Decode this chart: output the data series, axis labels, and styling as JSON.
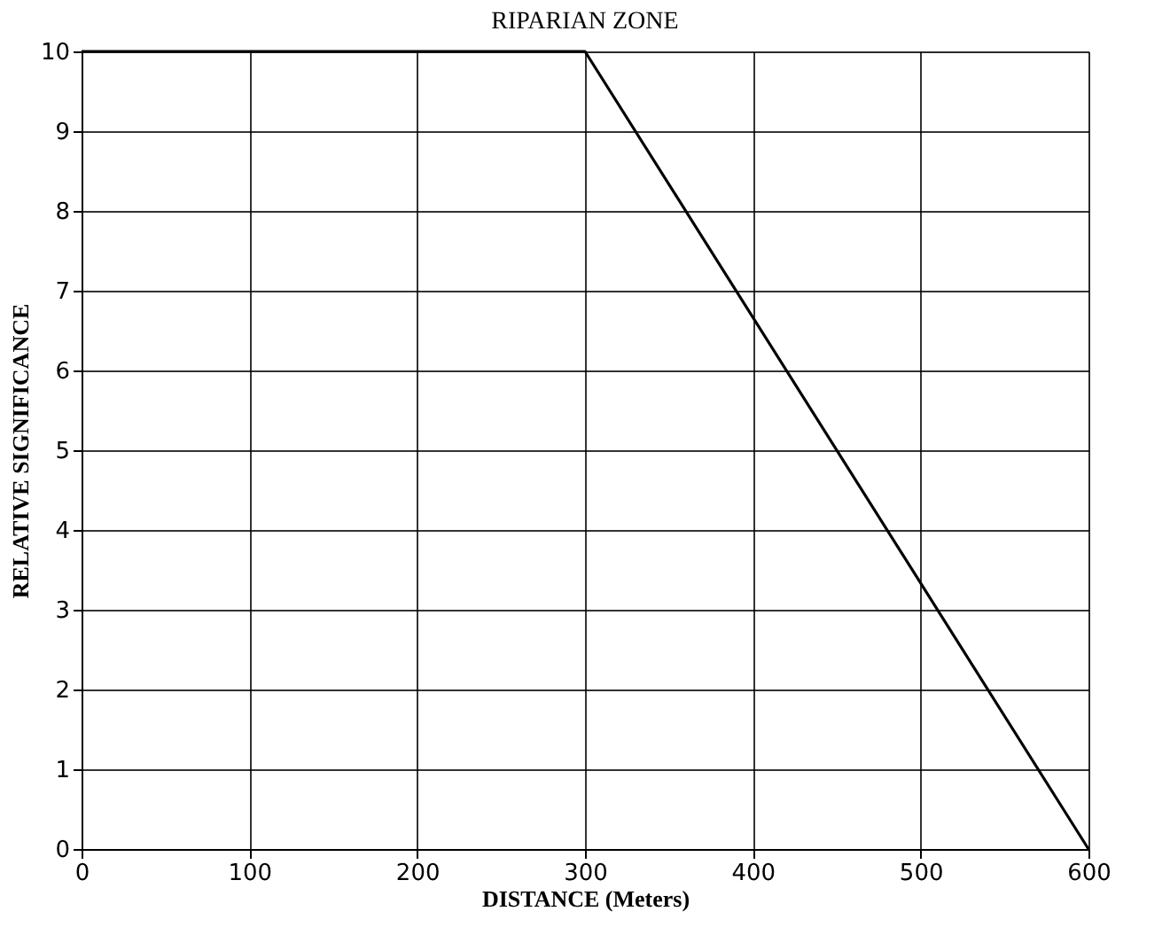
{
  "chart_data": {
    "type": "line",
    "title": "RIPARIAN ZONE",
    "xlabel": "DISTANCE (Meters)",
    "ylabel": "RELATIVE SIGNIFICANCE",
    "x": [
      0,
      300,
      600
    ],
    "series": [
      {
        "color": "#000000",
        "values": [
          10,
          10,
          0
        ]
      }
    ],
    "xlim": [
      0,
      600
    ],
    "xticks": [
      0,
      100,
      200,
      300,
      400,
      500,
      600
    ],
    "ylim": [
      0,
      10
    ],
    "yticks": [
      0,
      1,
      2,
      3,
      4,
      5,
      6,
      7,
      8,
      9,
      10
    ],
    "grid": true,
    "marker": "none",
    "line_style": "solid"
  }
}
